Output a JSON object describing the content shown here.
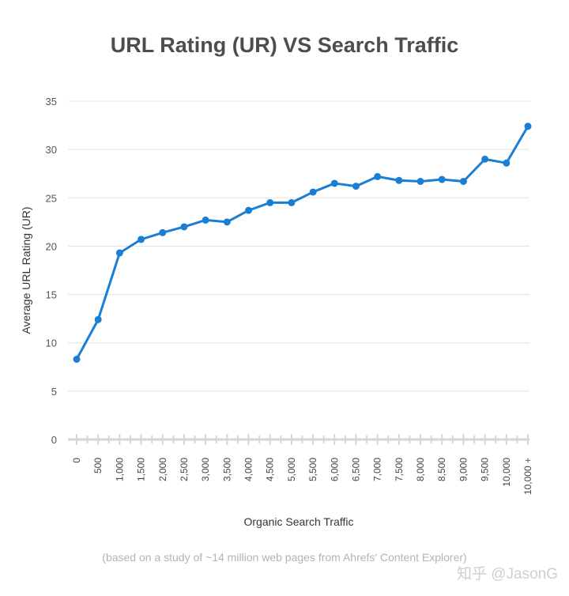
{
  "chart_data": {
    "type": "line",
    "title": "URL Rating (UR) VS Search Traffic",
    "xlabel": "Organic Search Traffic",
    "ylabel": "Average URL Rating (UR)",
    "ylim": [
      0,
      35
    ],
    "yticks": [
      0,
      5,
      10,
      15,
      20,
      25,
      30,
      35
    ],
    "grid": true,
    "categories": [
      "0",
      "500",
      "1,000",
      "1,500",
      "2,000",
      "2,500",
      "3,000",
      "3,500",
      "4,000",
      "4,500",
      "5,000",
      "5,500",
      "6,000",
      "6,500",
      "7,000",
      "7,500",
      "8,000",
      "8,500",
      "9,000",
      "9,500",
      "10,000",
      "10,000 +"
    ],
    "series": [
      {
        "values": [
          8.3,
          12.4,
          19.3,
          20.7,
          21.4,
          22.0,
          22.7,
          22.5,
          23.7,
          24.5,
          24.5,
          25.6,
          26.5,
          26.2,
          27.2,
          26.8,
          26.7,
          26.9,
          26.7,
          29.0,
          28.6,
          32.4
        ]
      }
    ],
    "line_color": "#1a7fd4"
  },
  "footnote": "(based on a study of ~14 million web pages from Ahrefs' Content Explorer)",
  "watermark": "知乎 @JasonG"
}
